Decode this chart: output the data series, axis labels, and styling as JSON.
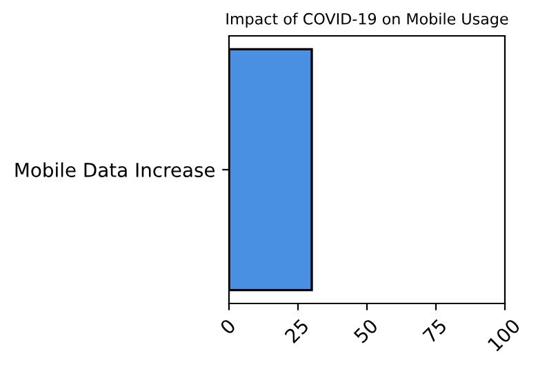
{
  "chart_data": {
    "type": "bar",
    "orientation": "horizontal",
    "title": "Impact of COVID-19 on Mobile Usage",
    "categories": [
      "Mobile Data Increase"
    ],
    "values": [
      30
    ],
    "color": "#4a90e2",
    "xlim": [
      0,
      100
    ],
    "xticks": [
      0,
      25,
      50,
      75,
      100
    ],
    "grid": false,
    "legend": false
  }
}
